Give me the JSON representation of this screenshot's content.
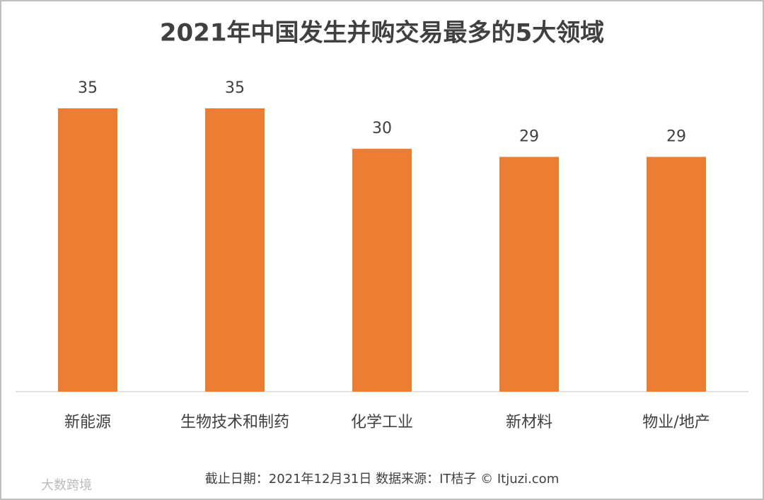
{
  "chart_data": {
    "type": "bar",
    "title": "2021年中国发生并购交易最多的5大领域",
    "categories": [
      "新能源",
      "生物技术和制药",
      "化学工业",
      "新材料",
      "物业/地产"
    ],
    "values": [
      35,
      35,
      30,
      29,
      29
    ],
    "color": "#ed7d31",
    "source": "截止日期：2021年12月31日    数据来源：IT桔子 © Itjuzi.com",
    "watermark": "大数跨境"
  }
}
